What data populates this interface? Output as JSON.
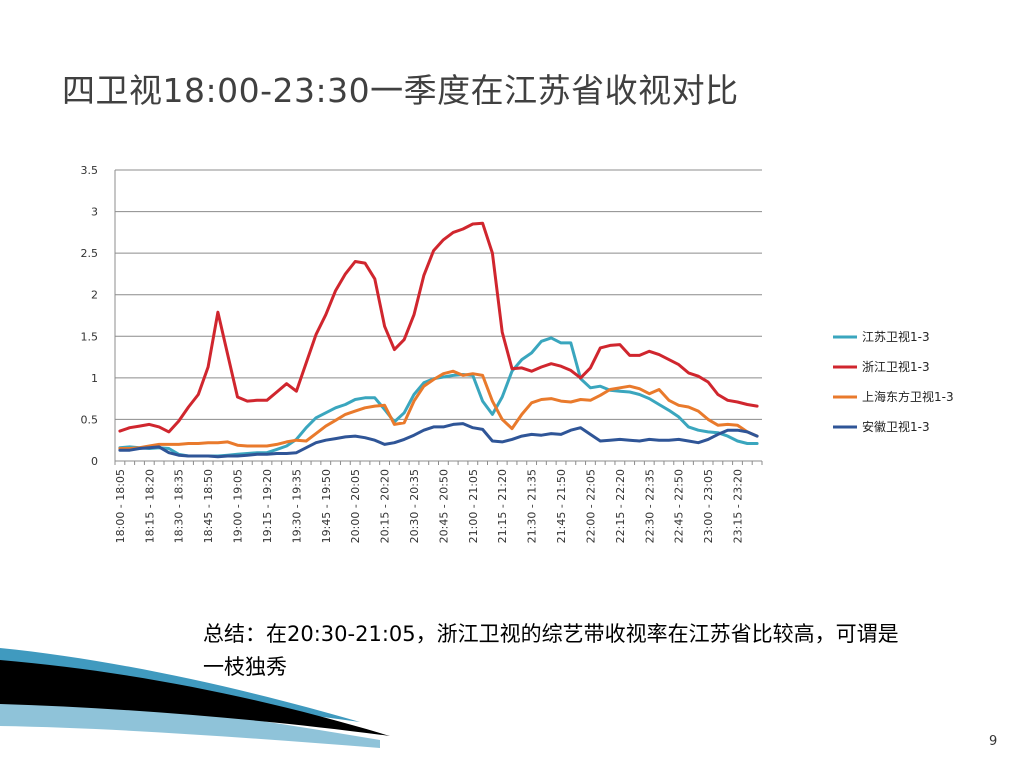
{
  "slide": {
    "title": "四卫视18:00-23:30一季度在江苏省收视对比",
    "summary": "总结：在20:30-21:05，浙江卫视的综艺带收视率在江苏省比较高，可谓是一枝独秀",
    "page_number": "9"
  },
  "colors": {
    "jiangsu": "#3AA6BE",
    "zhejiang": "#D0262E",
    "shanghai": "#E97A2C",
    "anhui": "#2F5597",
    "gridline": "#8C8C8C",
    "wave_dark": "#000000",
    "wave_blue": "#1F88B4"
  },
  "chart_data": {
    "type": "line",
    "title": "",
    "xlabel": "",
    "ylabel": "",
    "ylim": [
      0,
      3.5
    ],
    "yticks": [
      "0",
      "0.5",
      "1",
      "1.5",
      "2",
      "2.5",
      "3",
      "3.5"
    ],
    "grid": true,
    "legend_position": "right",
    "x": [
      "18:00 - 18:05",
      "18:05 - 18:10",
      "18:10 - 18:15",
      "18:15 - 18:20",
      "18:20 - 18:25",
      "18:25 - 18:30",
      "18:30 - 18:35",
      "18:35 - 18:40",
      "18:40 - 18:45",
      "18:45 - 18:50",
      "18:50 - 18:55",
      "18:55 - 19:00",
      "19:00 - 19:05",
      "19:05 - 19:10",
      "19:10 - 19:15",
      "19:15 - 19:20",
      "19:20 - 19:25",
      "19:25 - 19:30",
      "19:30 - 19:35",
      "19:35 - 19:40",
      "19:40 - 19:45",
      "19:45 - 19:50",
      "19:50 - 19:55",
      "19:55 - 20:00",
      "20:00 - 20:05",
      "20:05 - 20:10",
      "20:10 - 20:15",
      "20:15 - 20:20",
      "20:20 - 20:25",
      "20:25 - 20:30",
      "20:30 - 20:35",
      "20:35 - 20:40",
      "20:40 - 20:45",
      "20:45 - 20:50",
      "20:50 - 20:55",
      "20:55 - 21:00",
      "21:00 - 21:05",
      "21:05 - 21:10",
      "21:10 - 21:15",
      "21:15 - 21:20",
      "21:20 - 21:25",
      "21:25 - 21:30",
      "21:30 - 21:35",
      "21:35 - 21:40",
      "21:40 - 21:45",
      "21:45 - 21:50",
      "21:50 - 21:55",
      "21:55 - 22:00",
      "22:00 - 22:05",
      "22:05 - 22:10",
      "22:10 - 22:15",
      "22:15 - 22:20",
      "22:20 - 22:25",
      "22:25 - 22:30",
      "22:30 - 22:35",
      "22:35 - 22:40",
      "22:40 - 22:45",
      "22:45 - 22:50",
      "22:50 - 22:55",
      "22:55 - 23:00",
      "23:00 - 23:05",
      "23:05 - 23:10",
      "23:10 - 23:15",
      "23:15 - 23:20",
      "23:20 - 23:25",
      "23:25 - 23:30"
    ],
    "x_tick_labels": [
      "18:00 - 18:05",
      "18:15 - 18:20",
      "18:30 - 18:35",
      "18:45 - 18:50",
      "19:00 - 19:05",
      "19:15 - 19:20",
      "19:30 - 19:35",
      "19:45 - 19:50",
      "20:00 - 20:05",
      "20:15 - 20:20",
      "20:30 - 20:35",
      "20:45 - 20:50",
      "21:00 - 21:05",
      "21:15 - 21:20",
      "21:30 - 21:35",
      "21:45 - 21:50",
      "22:00 - 22:05",
      "22:15 - 22:20",
      "22:30 - 22:35",
      "22:45 - 22:50",
      "23:00 - 23:05",
      "23:15 - 23:20"
    ],
    "series": [
      {
        "name": "江苏卫视1-3",
        "color_key": "jiangsu",
        "values": [
          0.16,
          0.17,
          0.16,
          0.15,
          0.16,
          0.15,
          0.08,
          0.06,
          0.06,
          0.06,
          0.06,
          0.07,
          0.08,
          0.09,
          0.1,
          0.1,
          0.14,
          0.18,
          0.26,
          0.4,
          0.52,
          0.58,
          0.64,
          0.68,
          0.74,
          0.76,
          0.76,
          0.62,
          0.47,
          0.58,
          0.8,
          0.94,
          0.99,
          1.01,
          1.03,
          1.04,
          1.03,
          0.72,
          0.56,
          0.77,
          1.08,
          1.22,
          1.3,
          1.44,
          1.48,
          1.42,
          1.42,
          0.99,
          0.88,
          0.9,
          0.85,
          0.84,
          0.83,
          0.8,
          0.75,
          0.68,
          0.61,
          0.53,
          0.41,
          0.37,
          0.35,
          0.34,
          0.3,
          0.24,
          0.21,
          0.21
        ]
      },
      {
        "name": "浙江卫视1-3",
        "color_key": "zhejiang",
        "values": [
          0.36,
          0.4,
          0.42,
          0.44,
          0.41,
          0.35,
          0.48,
          0.65,
          0.8,
          1.13,
          1.79,
          1.28,
          0.77,
          0.72,
          0.73,
          0.73,
          0.83,
          0.93,
          0.84,
          1.18,
          1.52,
          1.76,
          2.05,
          2.25,
          2.4,
          2.38,
          2.19,
          1.62,
          1.34,
          1.46,
          1.76,
          2.23,
          2.53,
          2.66,
          2.75,
          2.79,
          2.85,
          2.86,
          2.5,
          1.55,
          1.11,
          1.12,
          1.08,
          1.13,
          1.17,
          1.14,
          1.09,
          1.0,
          1.12,
          1.36,
          1.39,
          1.4,
          1.27,
          1.27,
          1.32,
          1.28,
          1.22,
          1.16,
          1.06,
          1.02,
          0.95,
          0.8,
          0.73,
          0.71,
          0.68,
          0.66
        ]
      },
      {
        "name": "上海东方卫视1-3",
        "color_key": "shanghai",
        "values": [
          0.15,
          0.15,
          0.16,
          0.18,
          0.2,
          0.2,
          0.2,
          0.21,
          0.21,
          0.22,
          0.22,
          0.23,
          0.19,
          0.18,
          0.18,
          0.18,
          0.2,
          0.23,
          0.25,
          0.24,
          0.33,
          0.42,
          0.49,
          0.56,
          0.6,
          0.64,
          0.66,
          0.67,
          0.44,
          0.46,
          0.72,
          0.9,
          0.98,
          1.05,
          1.08,
          1.03,
          1.05,
          1.03,
          0.72,
          0.5,
          0.39,
          0.56,
          0.7,
          0.74,
          0.75,
          0.72,
          0.71,
          0.74,
          0.73,
          0.79,
          0.86,
          0.88,
          0.9,
          0.87,
          0.81,
          0.86,
          0.73,
          0.67,
          0.65,
          0.6,
          0.5,
          0.43,
          0.44,
          0.43,
          0.35,
          0.3
        ]
      },
      {
        "name": "安徽卫视1-3",
        "color_key": "anhui",
        "values": [
          0.13,
          0.13,
          0.15,
          0.16,
          0.17,
          0.1,
          0.07,
          0.06,
          0.06,
          0.06,
          0.05,
          0.06,
          0.06,
          0.07,
          0.08,
          0.08,
          0.09,
          0.09,
          0.1,
          0.16,
          0.22,
          0.25,
          0.27,
          0.29,
          0.3,
          0.28,
          0.25,
          0.2,
          0.22,
          0.26,
          0.31,
          0.37,
          0.41,
          0.41,
          0.44,
          0.45,
          0.4,
          0.38,
          0.24,
          0.23,
          0.26,
          0.3,
          0.32,
          0.31,
          0.33,
          0.32,
          0.37,
          0.4,
          0.32,
          0.24,
          0.25,
          0.26,
          0.25,
          0.24,
          0.26,
          0.25,
          0.25,
          0.26,
          0.24,
          0.22,
          0.26,
          0.32,
          0.37,
          0.37,
          0.35,
          0.3
        ]
      }
    ]
  }
}
